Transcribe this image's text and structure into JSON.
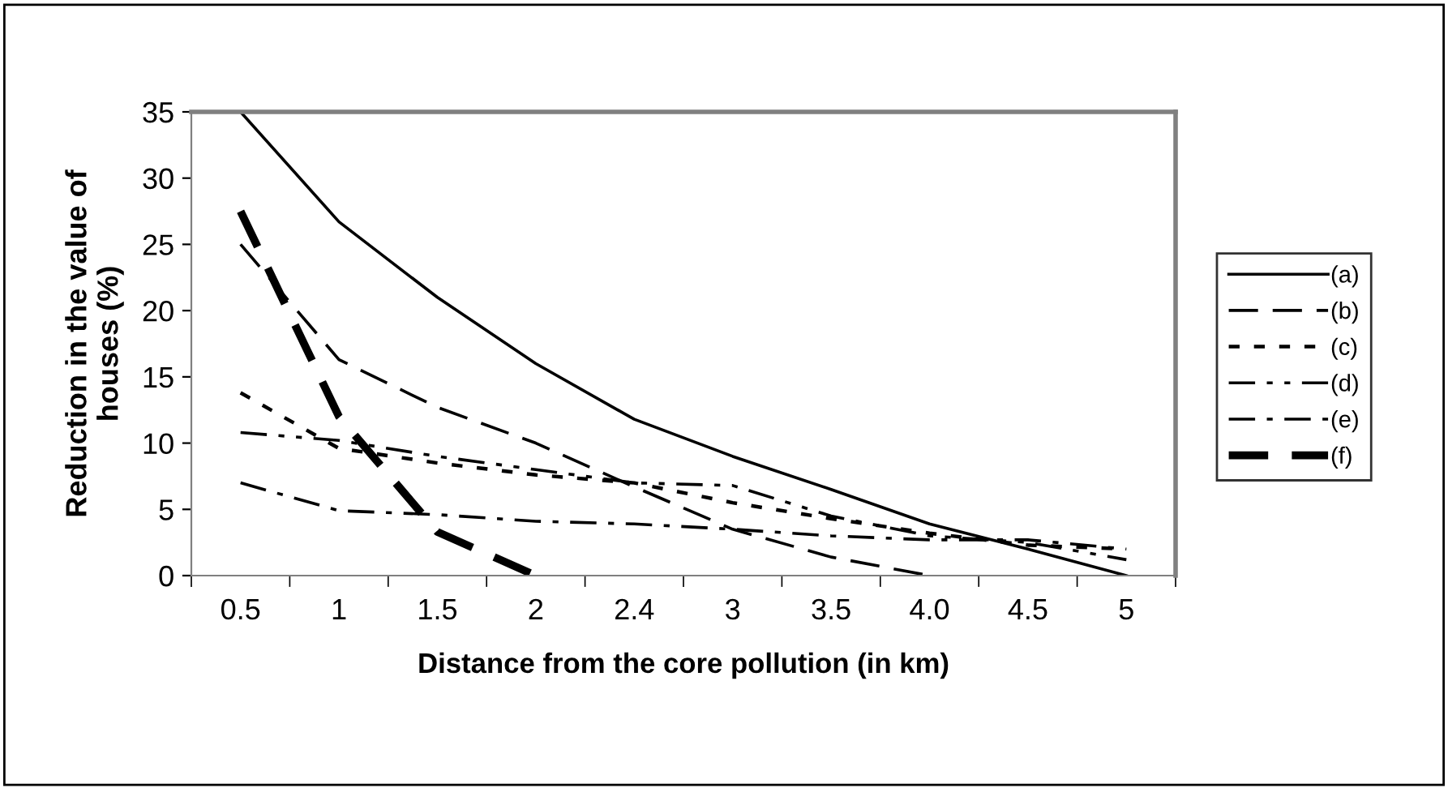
{
  "chart_data": {
    "type": "line",
    "xlabel": "Distance from the core pollution (in km)",
    "ylabel": "Reduction in the value of\nhouses (%)",
    "categories": [
      "0.5",
      "1",
      "1.5",
      "2",
      "2.4",
      "3",
      "3.5",
      "4.0",
      "4.5",
      "5"
    ],
    "ylim": [
      0,
      35
    ],
    "yticks": [
      0,
      5,
      10,
      15,
      20,
      25,
      30,
      35
    ],
    "grid": false,
    "legend": "right",
    "series": [
      {
        "name": "(a)",
        "color": "#000000",
        "line_style": "solid",
        "values": [
          35,
          26.7,
          21,
          16,
          11.8,
          9,
          6.5,
          3.9,
          2,
          0
        ]
      },
      {
        "name": "(b)",
        "color": "#000000",
        "line_style": "dashed",
        "values": [
          25,
          16.3,
          12.7,
          10,
          6.7,
          3.5,
          1.4,
          0,
          null,
          null
        ]
      },
      {
        "name": "(c)",
        "color": "#000000",
        "line_style": "dotted",
        "values": [
          13.8,
          9.6,
          8.5,
          7.6,
          7,
          5.5,
          4.3,
          3.2,
          2.3,
          2
        ]
      },
      {
        "name": "(d)",
        "color": "#000000",
        "line_style": "dashdotdot",
        "values": [
          10.8,
          10.2,
          9,
          8,
          7,
          6.8,
          4.5,
          3,
          2.5,
          1.2
        ]
      },
      {
        "name": "(e)",
        "color": "#000000",
        "line_style": "dashdot",
        "values": [
          7,
          4.9,
          4.6,
          4.1,
          3.9,
          3.5,
          3,
          2.7,
          2.7,
          2
        ]
      },
      {
        "name": "(f)",
        "color": "#000000",
        "line_style": "dashed_bold",
        "values": [
          27.5,
          12,
          3.3,
          0,
          null,
          null,
          null,
          null,
          null,
          null
        ]
      }
    ]
  }
}
